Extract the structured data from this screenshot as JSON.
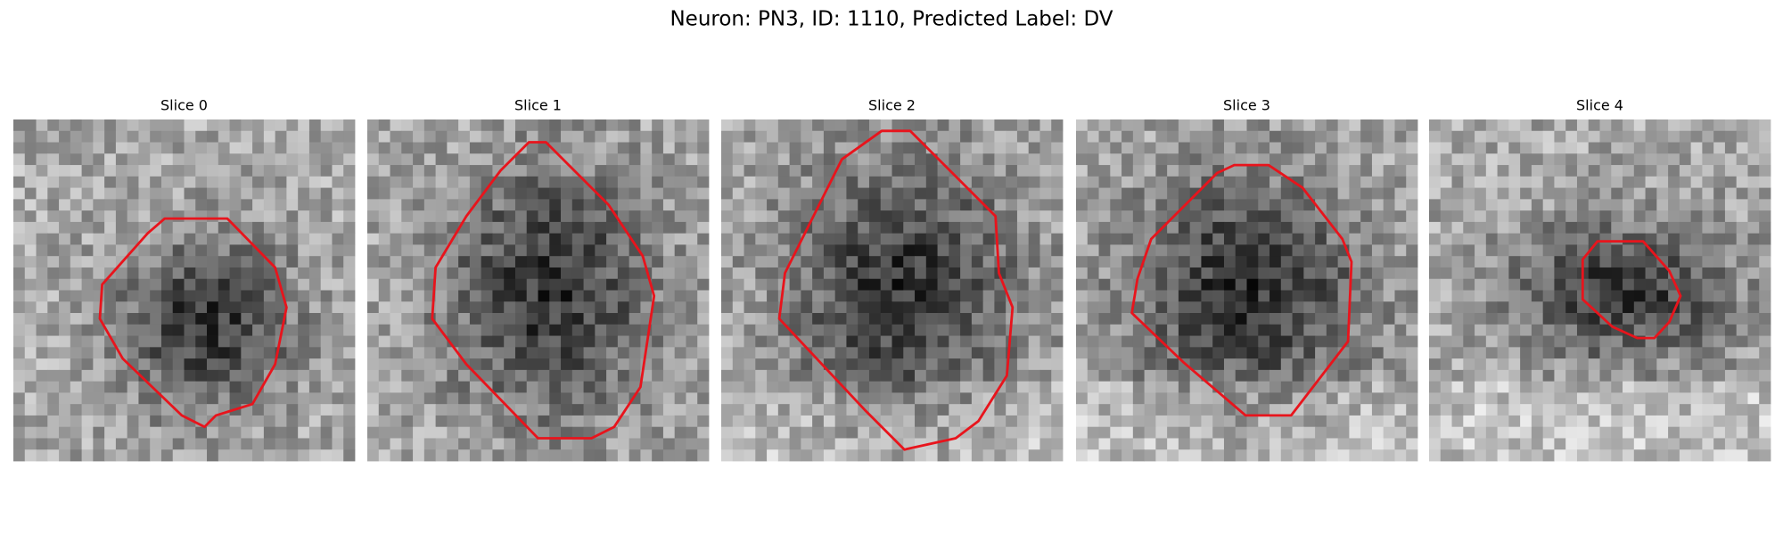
{
  "header": {
    "title": "Neuron: PN3, ID: 1110, Predicted Label: DV"
  },
  "panels": [
    {
      "title": "Slice 0"
    },
    {
      "title": "Slice 1"
    },
    {
      "title": "Slice 2"
    },
    {
      "title": "Slice 3"
    },
    {
      "title": "Slice 4"
    }
  ]
}
